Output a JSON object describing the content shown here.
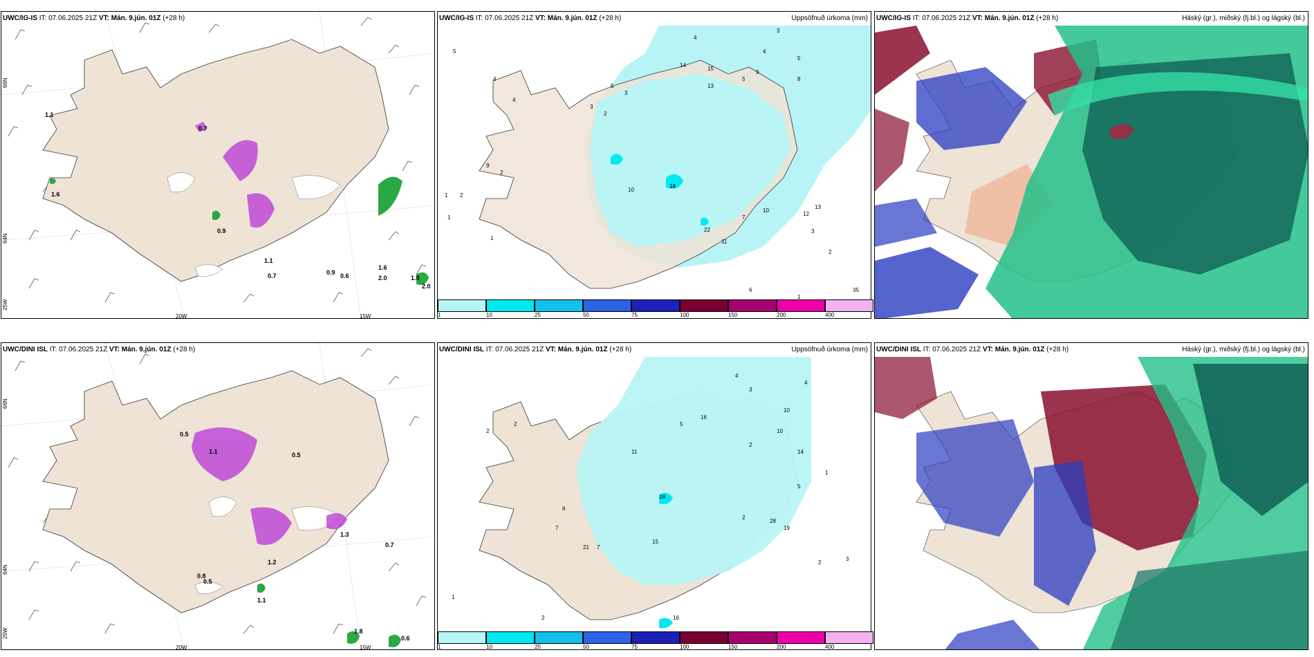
{
  "panels": {
    "r1c1": {
      "model": "UWC/IG-IS",
      "init": "IT: 07.06.2025 21Z",
      "vt_prefix": "VT:",
      "vt": "Mán. 9.jún. 01Z",
      "lead": "(+28 h)"
    },
    "r1c2": {
      "model": "UWC/IG-IS",
      "init": "IT: 07.06.2025 21Z",
      "vt_prefix": "VT:",
      "vt": "Mán. 9.jún. 01Z",
      "lead": "(+28 h)",
      "title_right": "Uppsöfnuð úrkoma (mm)"
    },
    "r1c3": {
      "model": "UWC/IG-IS",
      "init": "IT: 07.06.2025 21Z",
      "vt_prefix": "VT:",
      "vt": "Mán. 9.jún. 01Z",
      "lead": "(+28 h)",
      "title_right": "Háský (gr.), miðský (fj.bl.) og lágský (bl.)"
    },
    "r2c1": {
      "model": "UWC/DINI ISL",
      "init": "IT: 07.06.2025 21Z",
      "vt_prefix": "VT:",
      "vt": "Mán. 9.jún. 01Z",
      "lead": "(+28 h)"
    },
    "r2c2": {
      "model": "UWC/DINI ISL",
      "init": "IT: 07.06.2025 21Z",
      "vt_prefix": "VT:",
      "vt": "Mán. 9.jún. 01Z",
      "lead": "(+28 h)",
      "title_right": "Uppsöfnuð úrkoma (mm)"
    },
    "r2c3": {
      "model": "UWC/DINI ISL",
      "init": "IT: 07.06.2025 21Z",
      "vt_prefix": "VT:",
      "vt": "Mán. 9.jún. 01Z",
      "lead": "(+28 h)",
      "title_right": "Háský (gr.), miðský (fj.bl.) og lágský (bl.)"
    }
  },
  "axis_labels": {
    "lon_20w": "20W",
    "lon_15w": "15W",
    "lat_66n": "66N",
    "lat_64n": "64N",
    "lon_25w": "25W"
  },
  "colorbar": {
    "ticks": [
      "1",
      "10",
      "25",
      "50",
      "75",
      "100",
      "150",
      "200",
      "400"
    ],
    "colors": [
      "#b5f5f5",
      "#00e8f0",
      "#12c0ee",
      "#2d62e6",
      "#1c20b8",
      "#780032",
      "#a8006e",
      "#ee00a8",
      "#f2b2f2"
    ]
  },
  "colors": {
    "land": "#efe3d6",
    "precip": "#b8f4f5",
    "rain_green": "#2aa844",
    "snow_purple": "#c04ad8",
    "cloud_high": "#0d5a52",
    "cloud_mid": "#2a3cc0",
    "cloud_low": "#8a1030"
  },
  "precip_values_top": [
    "5",
    "4",
    "4",
    "9",
    "2",
    "1",
    "2",
    "1",
    "1",
    "3",
    "2",
    "5",
    "3",
    "4",
    "14",
    "15",
    "13",
    "5",
    "9",
    "4",
    "3",
    "5",
    "8",
    "10",
    "18",
    "22",
    "11",
    "7",
    "10",
    "13",
    "12",
    "3",
    "2",
    "6",
    "35",
    "1"
  ],
  "precip_values_bottom": [
    "2",
    "2",
    "1",
    "2",
    "6",
    "7",
    "21",
    "7",
    "15",
    "16",
    "11",
    "18",
    "28",
    "19",
    "10",
    "14",
    "4",
    "3",
    "5",
    "2",
    "1",
    "10",
    "5",
    "16",
    "2",
    "2",
    "3",
    "4"
  ],
  "rain_values_top": [
    "1.1",
    "1.6",
    "0.7",
    "0.9",
    "1.1",
    "0.7",
    "0.9",
    "0.6",
    "1.6",
    "2.0",
    "2.0",
    "1.0"
  ],
  "rain_values_bottom": [
    "0.5",
    "1.1",
    "0.8",
    "0.5",
    "0.5",
    "1.1",
    "1.2",
    "1.3",
    "0.7",
    "1.8",
    "0.6"
  ]
}
